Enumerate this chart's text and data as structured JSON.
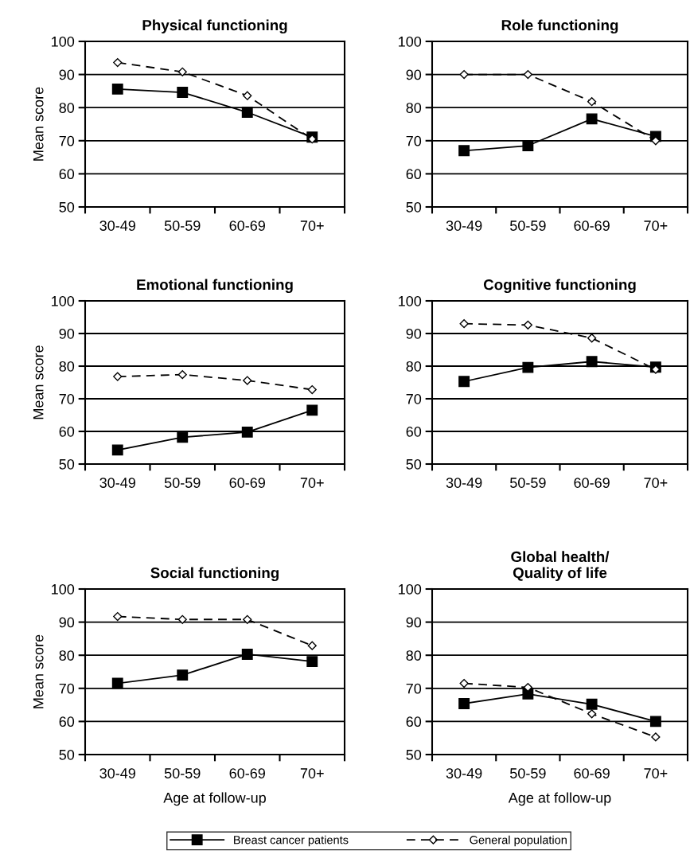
{
  "chart_data": [
    {
      "type": "line",
      "title": "Physical functioning",
      "ylabel": "Mean score",
      "categories": [
        "30-49",
        "50-59",
        "60-69",
        "70+"
      ],
      "ylim": [
        50,
        100
      ],
      "yticks": [
        50,
        60,
        70,
        80,
        90,
        100
      ],
      "grid": "y",
      "legend": "bottom",
      "series": [
        {
          "name": "Breast cancer patients",
          "color": "#000000",
          "marker": "square",
          "line_style": "solid",
          "values": [
            85.6,
            84.6,
            78.6,
            71.1
          ]
        },
        {
          "name": "General population",
          "color": "#000000",
          "marker": "diamond",
          "line_style": "dashed",
          "values": [
            93.6,
            90.8,
            83.6,
            70.5
          ]
        }
      ]
    },
    {
      "type": "line",
      "title": "Role functioning",
      "categories": [
        "30-49",
        "50-59",
        "60-69",
        "70+"
      ],
      "ylim": [
        50,
        100
      ],
      "yticks": [
        50,
        60,
        70,
        80,
        90,
        100
      ],
      "grid": "y",
      "series": [
        {
          "name": "Breast cancer patients",
          "color": "#000000",
          "marker": "square",
          "line_style": "solid",
          "values": [
            67.0,
            68.5,
            76.6,
            71.3
          ]
        },
        {
          "name": "General population",
          "color": "#000000",
          "marker": "diamond",
          "line_style": "dashed",
          "values": [
            90.0,
            90.0,
            81.8,
            70.0
          ]
        }
      ]
    },
    {
      "type": "line",
      "title": "Emotional functioning",
      "ylabel": "Mean score",
      "categories": [
        "30-49",
        "50-59",
        "60-69",
        "70+"
      ],
      "ylim": [
        50,
        100
      ],
      "yticks": [
        50,
        60,
        70,
        80,
        90,
        100
      ],
      "grid": "y",
      "series": [
        {
          "name": "Breast cancer patients",
          "color": "#000000",
          "marker": "square",
          "line_style": "solid",
          "values": [
            54.3,
            58.2,
            59.8,
            66.5
          ]
        },
        {
          "name": "General population",
          "color": "#000000",
          "marker": "diamond",
          "line_style": "dashed",
          "values": [
            76.8,
            77.4,
            75.6,
            72.8
          ]
        }
      ]
    },
    {
      "type": "line",
      "title": "Cognitive functioning",
      "categories": [
        "30-49",
        "50-59",
        "60-69",
        "70+"
      ],
      "ylim": [
        50,
        100
      ],
      "yticks": [
        50,
        60,
        70,
        80,
        90,
        100
      ],
      "grid": "y",
      "series": [
        {
          "name": "Breast cancer patients",
          "color": "#000000",
          "marker": "square",
          "line_style": "solid",
          "values": [
            75.3,
            79.6,
            81.4,
            79.7
          ]
        },
        {
          "name": "General population",
          "color": "#000000",
          "marker": "diamond",
          "line_style": "dashed",
          "values": [
            93.0,
            92.6,
            88.6,
            79.0
          ]
        }
      ]
    },
    {
      "type": "line",
      "title": "Social functioning",
      "ylabel": "Mean score",
      "xlabel": "Age at follow-up",
      "categories": [
        "30-49",
        "50-59",
        "60-69",
        "70+"
      ],
      "ylim": [
        50,
        100
      ],
      "yticks": [
        50,
        60,
        70,
        80,
        90,
        100
      ],
      "grid": "y",
      "series": [
        {
          "name": "Breast cancer patients",
          "color": "#000000",
          "marker": "square",
          "line_style": "solid",
          "values": [
            71.5,
            74.0,
            80.3,
            78.1
          ]
        },
        {
          "name": "General population",
          "color": "#000000",
          "marker": "diamond",
          "line_style": "dashed",
          "values": [
            91.7,
            90.8,
            90.8,
            82.9
          ]
        }
      ]
    },
    {
      "type": "line",
      "title": "Global health/\nQuality of life",
      "xlabel": "Age at follow-up",
      "categories": [
        "30-49",
        "50-59",
        "60-69",
        "70+"
      ],
      "ylim": [
        50,
        100
      ],
      "yticks": [
        50,
        60,
        70,
        80,
        90,
        100
      ],
      "grid": "y",
      "legend": "bottom",
      "series": [
        {
          "name": "Breast cancer patients",
          "color": "#000000",
          "marker": "square",
          "line_style": "solid",
          "values": [
            65.4,
            68.3,
            65.2,
            60.0
          ]
        },
        {
          "name": "General population",
          "color": "#000000",
          "marker": "diamond",
          "line_style": "dashed",
          "values": [
            71.5,
            70.3,
            62.3,
            55.3
          ]
        }
      ]
    }
  ]
}
